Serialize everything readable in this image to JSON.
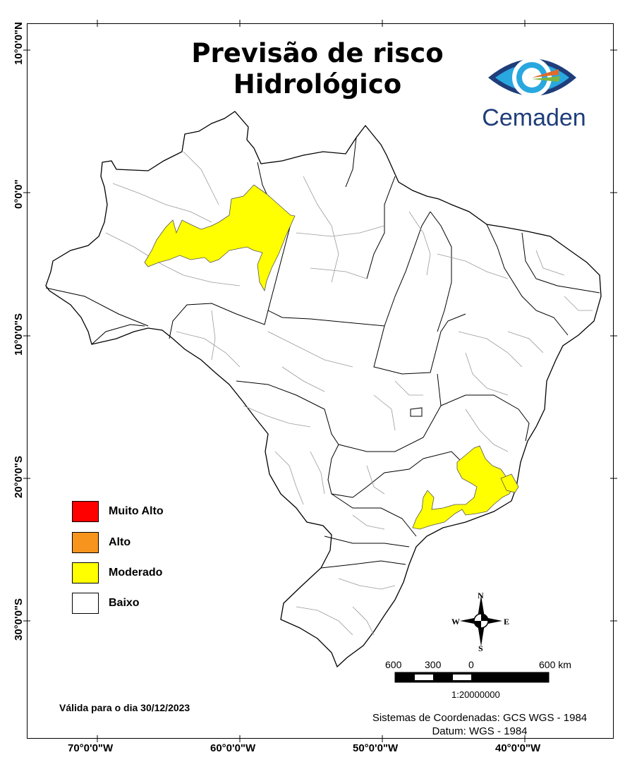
{
  "title_line1": "Previsão de risco",
  "title_line2": "Hidrológico",
  "logo_text": "Cemaden",
  "lat_labels": [
    "10°0'0\"N",
    "0°0'0\"",
    "10°0'0\"S",
    "20°0'0\"S",
    "30°0'0\"S"
  ],
  "lon_labels": [
    "70°0'0\"W",
    "60°0'0\"W",
    "50°0'0\"W",
    "40°0'0\"W"
  ],
  "legend": [
    {
      "label": "Muito Alto",
      "color": "#ff0000"
    },
    {
      "label": "Alto",
      "color": "#f7941d"
    },
    {
      "label": "Moderado",
      "color": "#ffff00"
    },
    {
      "label": "Baixo",
      "color": "#ffffff"
    }
  ],
  "valid_date": "Válida para o dia 30/12/2023",
  "crs_line1": "Sistemas de Coordenadas: GCS WGS - 1984",
  "crs_line2": "Datum: WGS - 1984",
  "scale_labels": [
    "600",
    "300",
    "0",
    "600 km"
  ],
  "scale_ratio": "1:20000000",
  "compass": {
    "n": "N",
    "s": "S",
    "e": "E",
    "w": "W"
  },
  "colors": {
    "moderado": "#ffff00",
    "logo_blue": "#1f3d7a"
  }
}
